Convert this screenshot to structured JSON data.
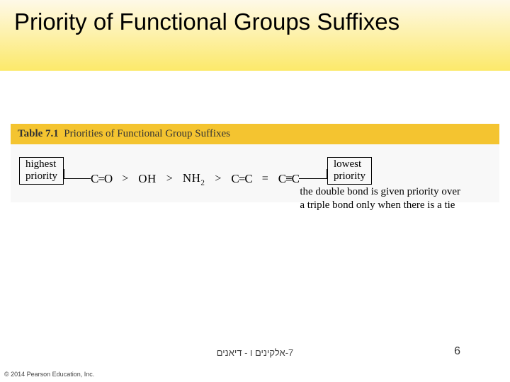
{
  "header": {
    "title": "Priority of Functional Groups Suffixes"
  },
  "table": {
    "number": "Table 7.1",
    "title": "Priorities of Functional Group Suffixes",
    "header_bg": "#f4c430",
    "body_bg": "#f8f8f8",
    "left_label_line1": "highest",
    "left_label_line2": "priority",
    "right_label_line1": "lowest",
    "right_label_line2": "priority",
    "groups": {
      "g1": "C=O",
      "g2": "OH",
      "g3": "NH",
      "g3_sub": "2",
      "g4": "C=C",
      "g5": "C≡C"
    },
    "gt": ">",
    "eq": "=",
    "caption_line1": "the double bond is given priority over",
    "caption_line2": "a triple bond only when there is a tie"
  },
  "footer": {
    "center_text": "7-אלקינים ו - דיאנים",
    "page_number": "6",
    "copyright": "© 2014 Pearson Education, Inc."
  }
}
